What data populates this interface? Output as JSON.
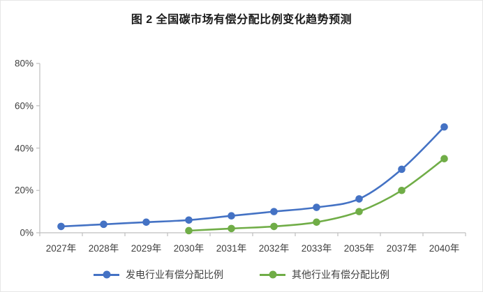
{
  "window": {
    "background": "#ffffff",
    "border_color": "#e6e6e6"
  },
  "chart_data": {
    "type": "line",
    "title": "图 2 全国碳市场有偿分配比例变化趋势预测",
    "categories": [
      "2027年",
      "2028年",
      "2029年",
      "2030年",
      "2031年",
      "2032年",
      "2033年",
      "2035年",
      "2037年",
      "2040年"
    ],
    "series": [
      {
        "name": "发电行业有偿分配比例",
        "color": "#4472C4",
        "values": [
          3,
          4,
          5,
          6,
          8,
          10,
          12,
          16,
          30,
          50
        ]
      },
      {
        "name": "其他行业有偿分配比例",
        "color": "#70AD47",
        "values": [
          null,
          null,
          null,
          1,
          2,
          3,
          5,
          10,
          20,
          35
        ]
      }
    ],
    "xlabel": "",
    "ylabel": "",
    "ylim": [
      0,
      80
    ],
    "yticks": [
      "0%",
      "20%",
      "40%",
      "60%",
      "80%"
    ],
    "grid": false,
    "legend_position": "bottom",
    "marker": "circle",
    "smooth": true,
    "axis_color": "#BFBFBF",
    "label_color": "#404040",
    "title_color": "#1a1a1a"
  }
}
